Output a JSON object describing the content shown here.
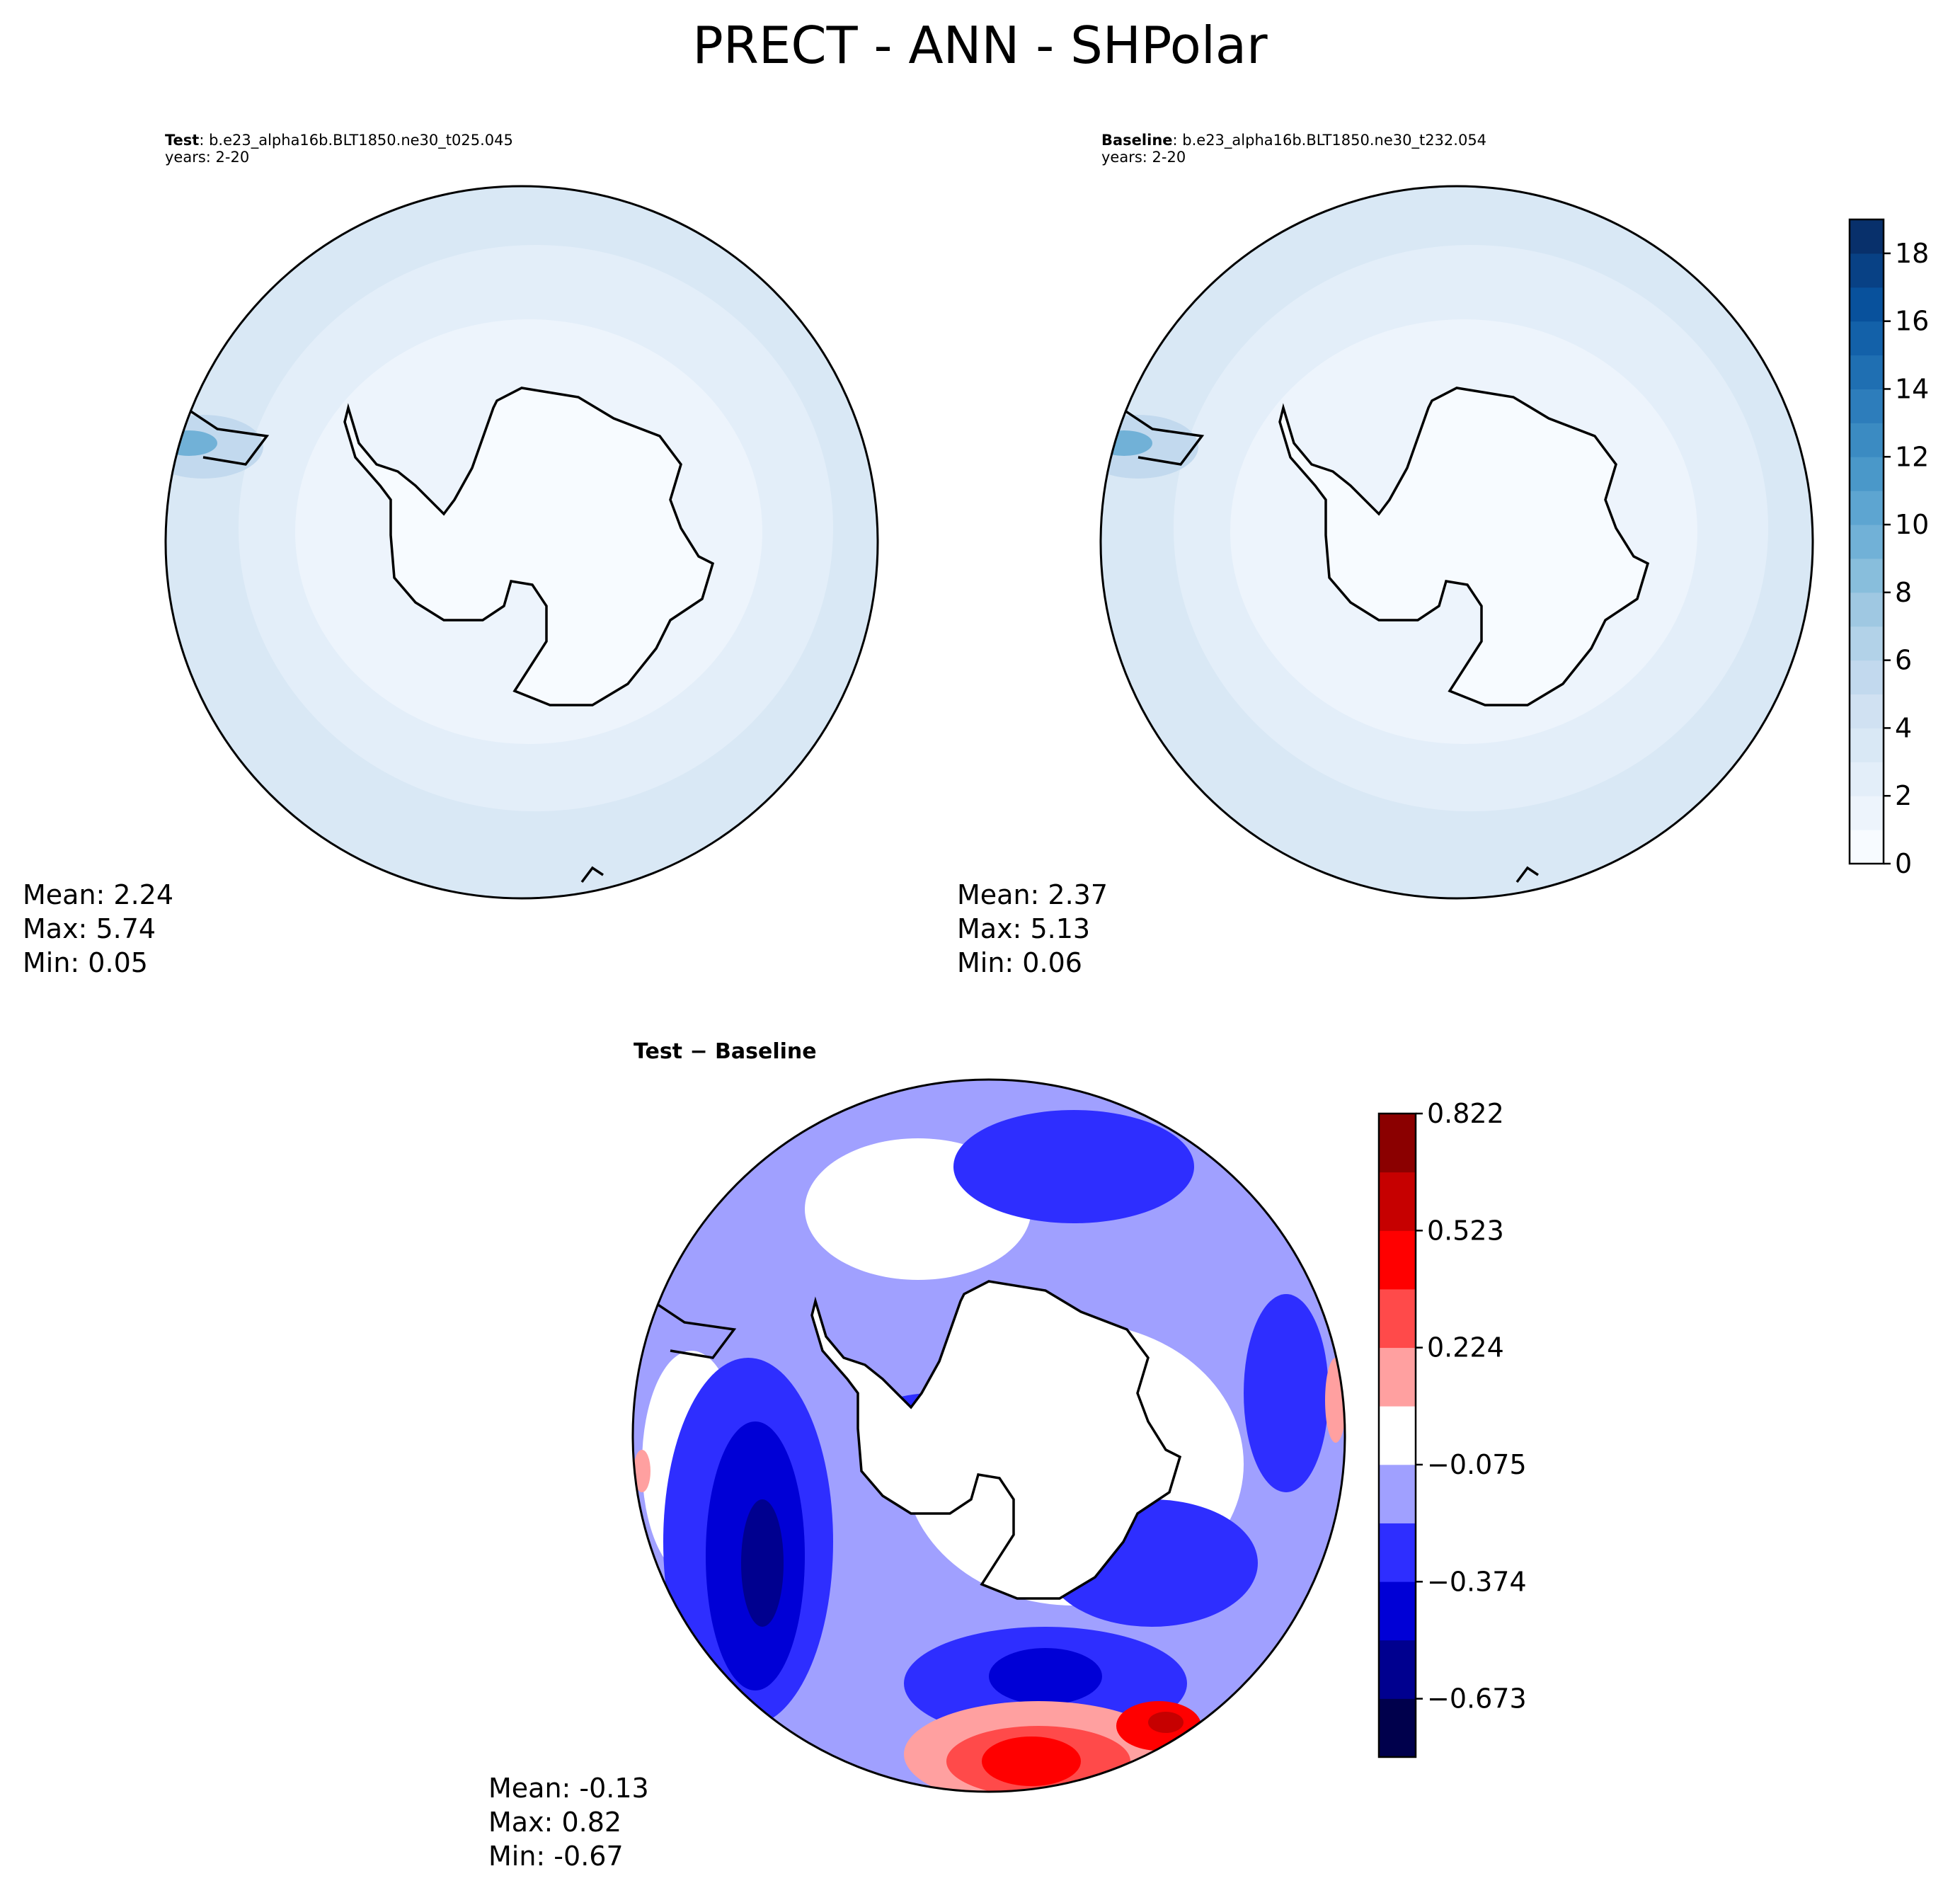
{
  "figure": {
    "title": "PRECT - ANN - SHPolar"
  },
  "panels": {
    "test": {
      "label": "Test",
      "case": ": b.e23_alpha16b.BLT1850.ne30_t025.045",
      "years": "years: 2-20",
      "stats": {
        "mean": "Mean:  2.24",
        "max": "Max:  5.74",
        "min": "Min:  0.05"
      }
    },
    "baseline": {
      "label": "Baseline",
      "case": ": b.e23_alpha16b.BLT1850.ne30_t232.054",
      "years": "years: 2-20",
      "stats": {
        "mean": "Mean:  2.37",
        "max": "Max:  5.13",
        "min": "Min:  0.06"
      }
    },
    "diff": {
      "title": "Test − Baseline",
      "stats": {
        "mean": "Mean: -0.13",
        "max": "Max:  0.82",
        "min": "Min: -0.67"
      }
    }
  },
  "chart_data": [
    {
      "type": "heatmap",
      "projection": "south-polar stereographic",
      "title": "Test : b.e23_alpha16b.BLT1850.ne30_t025.045",
      "subtitle": "years: 2-20",
      "stats": {
        "mean": 2.24,
        "max": 5.74,
        "min": 0.05
      },
      "colorbar": {
        "range": [
          0,
          19
        ],
        "ticks": [
          0,
          2,
          4,
          6,
          8,
          10,
          12,
          14,
          16,
          18
        ],
        "colormap": "Blues"
      }
    },
    {
      "type": "heatmap",
      "projection": "south-polar stereographic",
      "title": "Baseline : b.e23_alpha16b.BLT1850.ne30_t232.054",
      "subtitle": "years: 2-20",
      "stats": {
        "mean": 2.37,
        "max": 5.13,
        "min": 0.06
      },
      "colorbar": {
        "range": [
          0,
          19
        ],
        "ticks": [
          0,
          2,
          4,
          6,
          8,
          10,
          12,
          14,
          16,
          18
        ],
        "colormap": "Blues"
      }
    },
    {
      "type": "heatmap",
      "projection": "south-polar stereographic",
      "title": "Test − Baseline",
      "stats": {
        "mean": -0.13,
        "max": 0.82,
        "min": -0.67
      },
      "colorbar": {
        "range": [
          -0.822,
          0.822
        ],
        "ticks": [
          -0.673,
          -0.374,
          -0.075,
          0.224,
          0.523,
          0.822
        ],
        "tick_labels": [
          "−0.673",
          "−0.374",
          "−0.075",
          "0.224",
          "0.523",
          "0.822"
        ],
        "colormap": "seismic"
      }
    }
  ],
  "colors": {
    "land": "#f7fbff",
    "blues": [
      "#f7fbff",
      "#edf4fc",
      "#e3eef9",
      "#d9e8f5",
      "#d0e1f2",
      "#c2d9ee",
      "#b2d2e8",
      "#9fc8e2",
      "#88bedc",
      "#71b1d7",
      "#5da5d1",
      "#4a98c9",
      "#3b8bc2",
      "#2d7dbb",
      "#1f6fb2",
      "#1361a9",
      "#08519c",
      "#084185",
      "#08306b"
    ],
    "seismic": [
      "#00004c",
      "#00008f",
      "#0000d6",
      "#2e2eff",
      "#a0a0ff",
      "#ffffff",
      "#ffa0a0",
      "#ff4a4a",
      "#ff0000",
      "#c60000",
      "#8b0000"
    ]
  }
}
